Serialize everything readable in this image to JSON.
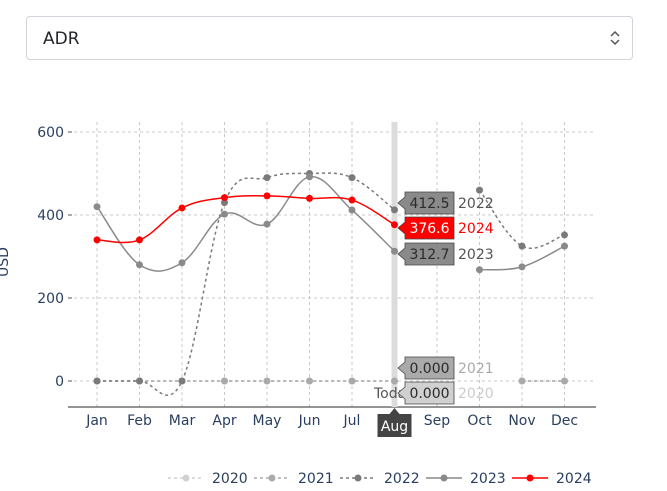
{
  "selector": {
    "value": "ADR",
    "icon": "chevron-updown-icon"
  },
  "chart_data": {
    "type": "line",
    "title": "",
    "ylabel": "USD",
    "xlabel": "",
    "ylim": [
      -60,
      600
    ],
    "yticks": [
      0,
      200,
      400,
      600
    ],
    "grid": true,
    "categories": [
      "Jan",
      "Feb",
      "Mar",
      "Apr",
      "May",
      "Jun",
      "Jul",
      "Aug",
      "Sep",
      "Oct",
      "Nov",
      "Dec"
    ],
    "series": [
      {
        "name": "2020",
        "color": "#d0d0d0",
        "dash": "3,3",
        "values": [
          0,
          0,
          0,
          0,
          0,
          0,
          0,
          0,
          null,
          null,
          0,
          0
        ]
      },
      {
        "name": "2021",
        "color": "#aaaaaa",
        "dash": "3,3",
        "values": [
          0,
          0,
          0,
          0,
          0,
          0,
          0,
          0,
          null,
          null,
          0,
          0
        ]
      },
      {
        "name": "2022",
        "color": "#7a7a7a",
        "dash": "3,3",
        "values": [
          0,
          0,
          0,
          430,
          490,
          500,
          490,
          412.5,
          null,
          460,
          325,
          352
        ]
      },
      {
        "name": "2023",
        "color": "#8a8a8a",
        "dash": "",
        "values": [
          420,
          280,
          285,
          402,
          378,
          492,
          412,
          312.7,
          null,
          268,
          275,
          325
        ]
      },
      {
        "name": "2024",
        "color": "#ff0000",
        "dash": "",
        "values": [
          340,
          340,
          417,
          442,
          446,
          440,
          436,
          376.6,
          null,
          null,
          null,
          null
        ]
      }
    ],
    "hover": {
      "category": "Aug",
      "today_label": "Today",
      "labels": [
        {
          "series": "2022",
          "value": "412.5",
          "y": 412.5,
          "box": "#8a8a8a",
          "text": "#555555"
        },
        {
          "series": "2024",
          "value": "376.6",
          "y": 376.6,
          "box": "#ff0000",
          "text": "#ff0000"
        },
        {
          "series": "2023",
          "value": "312.7",
          "y": 312.7,
          "box": "#8a8a8a",
          "text": "#555555"
        },
        {
          "series": "2021",
          "value": "0.000",
          "y": 0,
          "box": "#aaaaaa",
          "text": "#aaaaaa"
        },
        {
          "series": "2020",
          "value": "0.000",
          "y": 0,
          "box": "#d0d0d0",
          "text": "#cccccc"
        }
      ]
    },
    "legend_position": "bottom"
  }
}
